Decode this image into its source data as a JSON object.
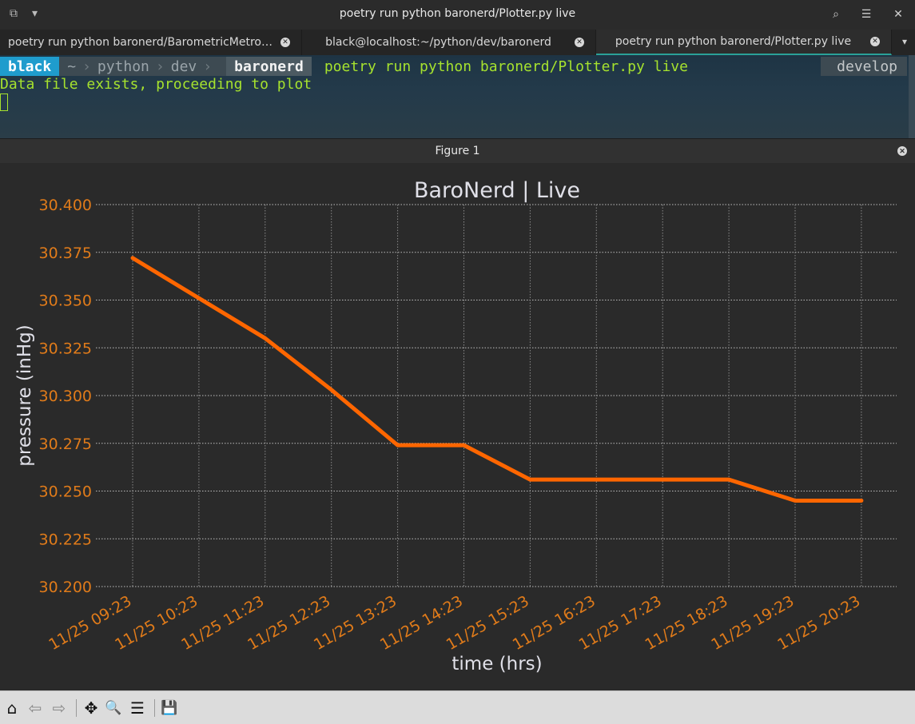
{
  "window": {
    "title": "poetry run python baronerd/Plotter.py live"
  },
  "tabs": [
    {
      "label": "poetry run python baronerd/BarometricMetro…"
    },
    {
      "label": "black@localhost:~/python/dev/baronerd"
    },
    {
      "label": "poetry run python baronerd/Plotter.py live"
    }
  ],
  "terminal": {
    "user": "black",
    "path": [
      "~",
      "python",
      "dev"
    ],
    "current_dir": "baronerd",
    "command": "poetry run python baronerd/Plotter.py live",
    "branch_icon": "",
    "branch": "develop",
    "output": "Data file exists, proceeding to plot"
  },
  "figure": {
    "title": "Figure 1"
  },
  "chart_data": {
    "type": "line",
    "title": "BaroNerd | Live",
    "xlabel": "time (hrs)",
    "ylabel": "pressure (inHg)",
    "x": [
      "11/25 09:23",
      "11/25 10:23",
      "11/25 11:23",
      "11/25 12:23",
      "11/25 13:23",
      "11/25 14:23",
      "11/25 15:23",
      "11/25 16:23",
      "11/25 17:23",
      "11/25 18:23",
      "11/25 19:23",
      "11/25 20:23"
    ],
    "series": [
      {
        "values": [
          30.372,
          30.351,
          30.33,
          30.303,
          30.274,
          30.274,
          30.256,
          30.256,
          30.256,
          30.256,
          30.245,
          30.245
        ],
        "color": "#ff6600"
      }
    ],
    "ylim": [
      30.2,
      30.4
    ],
    "yticks": [
      "30.200",
      "30.225",
      "30.250",
      "30.275",
      "30.300",
      "30.325",
      "30.350",
      "30.375",
      "30.400"
    ],
    "grid": true,
    "tick_color": "#e07b1a",
    "label_color": "#e0e0e8"
  },
  "toolbar": {
    "home_icon": "⌂",
    "back_icon": "⇦",
    "forward_icon": "⇨",
    "pan_icon": "✥",
    "zoom_icon": "🔍",
    "config_icon": "☰",
    "save_icon": "💾"
  }
}
